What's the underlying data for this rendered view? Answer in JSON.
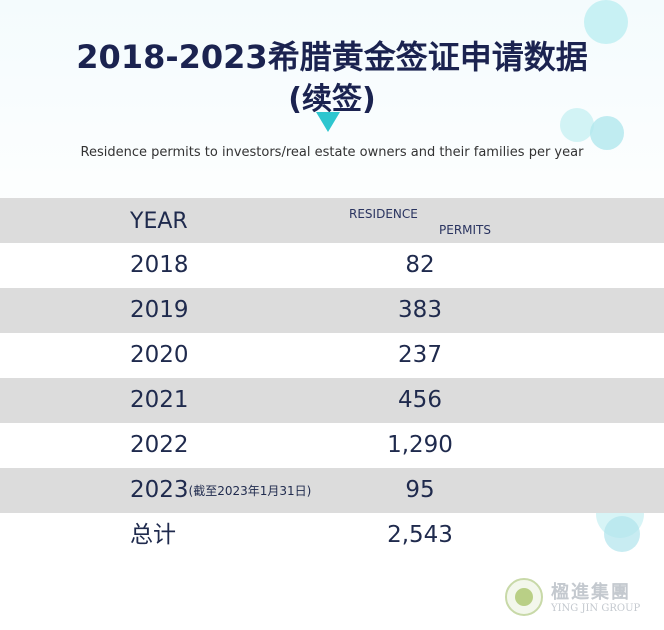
{
  "title_line1": "2018-2023希腊黄金签证申请数据",
  "title_line2": "(续签)",
  "subtitle": "Residence permits to investors/real estate owners and their families per year",
  "table": {
    "header": {
      "year": "YEAR",
      "permits_line1": "RESIDENCE",
      "permits_line2": "PERMITS"
    },
    "rows": [
      {
        "year": "2018",
        "note": "",
        "permits": "82"
      },
      {
        "year": "2019",
        "note": "",
        "permits": "383"
      },
      {
        "year": "2020",
        "note": "",
        "permits": "237"
      },
      {
        "year": "2021",
        "note": "",
        "permits": "456"
      },
      {
        "year": "2022",
        "note": "",
        "permits": "1,290"
      },
      {
        "year": "2023",
        "note": "(截至2023年1月31日)",
        "permits": "95"
      }
    ],
    "total": {
      "label": "总计",
      "permits": "2,543"
    }
  },
  "logo": {
    "name_cn": "楹進集團",
    "name_en": "YING JIN GROUP"
  },
  "colors": {
    "title": "#1b2350",
    "accent": "#2ec6cf",
    "row_shade": "#dcdcdc"
  }
}
